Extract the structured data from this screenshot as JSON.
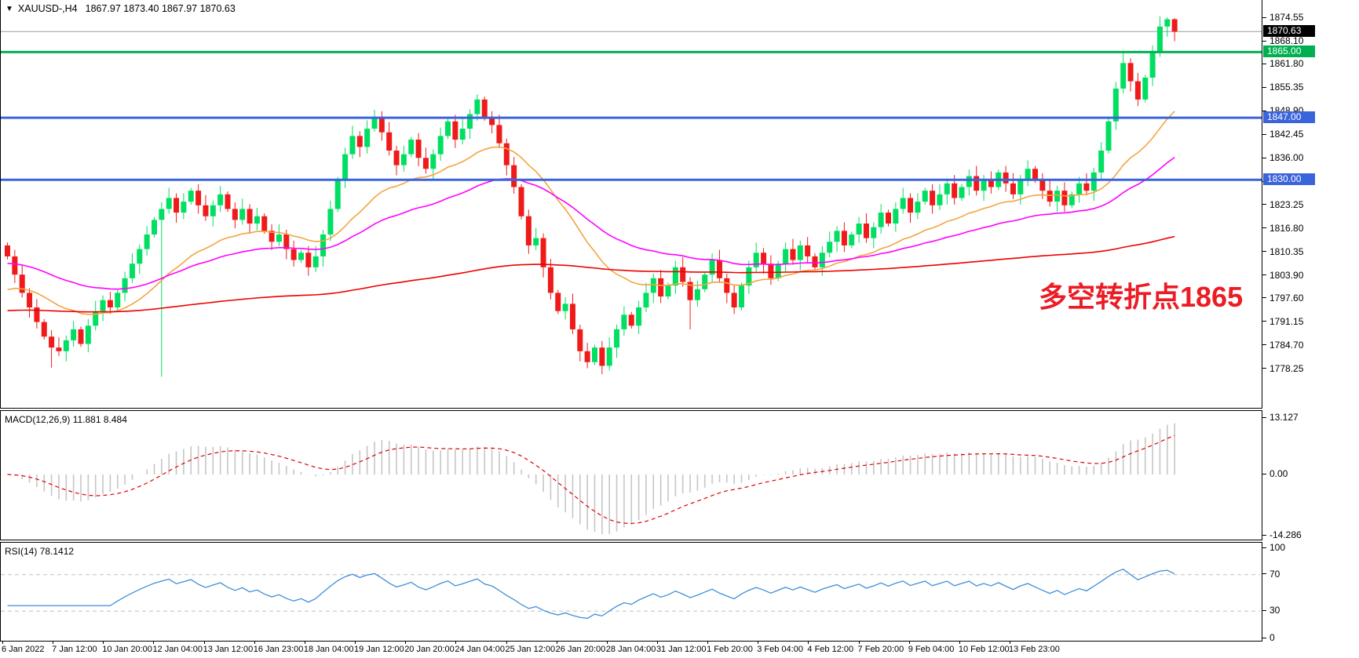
{
  "window": {
    "symbol_header": {
      "collapse_icon": "▼",
      "symbol": "XAUUSD-,H4",
      "ohlc_text": "1867.97 1873.40 1867.97 1870.63"
    }
  },
  "chart_data": {
    "type": "candlestick",
    "title": "XAUUSD-,H4",
    "symbol": "XAUUSD-",
    "timeframe": "H4",
    "current_bar_ohlc": {
      "open": 1867.97,
      "high": 1873.4,
      "low": 1867.97,
      "close": 1870.63
    },
    "price_panel": {
      "ylim": [
        1767,
        1877
      ],
      "axis_ticks": [
        "1874.55",
        "1868.10",
        "1861.80",
        "1855.35",
        "1848.90",
        "1842.45",
        "1836.00",
        "1829.55",
        "1823.25",
        "1816.80",
        "1810.35",
        "1803.90",
        "1797.60",
        "1791.15",
        "1784.70",
        "1778.25"
      ],
      "first_open": 1812,
      "closes": [
        1809,
        1804,
        1799,
        1795,
        1791,
        1787,
        1784,
        1783,
        1786,
        1789,
        1785,
        1790,
        1794,
        1797,
        1795,
        1799,
        1803,
        1807,
        1811,
        1815,
        1819,
        1822,
        1825,
        1821,
        1824,
        1827,
        1823,
        1820,
        1823,
        1826,
        1822,
        1819,
        1822,
        1818,
        1820,
        1816,
        1813,
        1815,
        1811,
        1808,
        1810,
        1806,
        1809,
        1815,
        1822,
        1830,
        1837,
        1842,
        1839,
        1844,
        1847,
        1843,
        1838,
        1834,
        1837,
        1841,
        1836,
        1833,
        1837,
        1842,
        1846,
        1841,
        1844,
        1848,
        1852,
        1847,
        1845,
        1840,
        1834,
        1828,
        1820,
        1812,
        1814,
        1806,
        1799,
        1794,
        1796,
        1789,
        1783,
        1780,
        1784,
        1779,
        1784,
        1789,
        1793,
        1790,
        1795,
        1799,
        1803,
        1798,
        1801,
        1806,
        1802,
        1797,
        1800,
        1804,
        1808,
        1803,
        1799,
        1795,
        1801,
        1806,
        1810,
        1807,
        1803,
        1807,
        1811,
        1808,
        1812,
        1809,
        1806,
        1810,
        1813,
        1816,
        1812,
        1815,
        1818,
        1814,
        1817,
        1821,
        1818,
        1822,
        1825,
        1821,
        1824,
        1827,
        1823,
        1826,
        1829,
        1825,
        1828,
        1831,
        1827,
        1830,
        1828,
        1832,
        1829,
        1826,
        1830,
        1833,
        1830,
        1827,
        1824,
        1827,
        1823,
        1826,
        1829,
        1827,
        1832,
        1838,
        1846,
        1855,
        1862,
        1857,
        1852,
        1858,
        1865,
        1872,
        1874,
        1870.63
      ],
      "low_overrides": {
        "6": 1778.5,
        "21": 1776,
        "79": 1778.3,
        "93": 1789,
        "159": 1868
      },
      "high_overrides": {
        "50": 1849.2,
        "64": 1853.4,
        "158": 1874.55,
        "159": 1874.3
      },
      "colors": {
        "bull": "#00DF62",
        "bear": "#EF1A1A"
      },
      "levels": [
        {
          "price": 1865.0,
          "label": "1865.00",
          "color": "#00B050",
          "width": 3
        },
        {
          "price": 1847.0,
          "label": "1847.00",
          "color": "#3A64DB",
          "width": 3
        },
        {
          "price": 1830.0,
          "label": "1830.00",
          "color": "#3A64DB",
          "width": 3
        }
      ],
      "current_price": {
        "value": 1870.63,
        "label": "1870.63",
        "line_color": "#9a9a9a",
        "badge_color": "#000000"
      },
      "moving_averages": [
        {
          "name": "fast-ma",
          "color": "#F4A440",
          "period": 22,
          "seed": 1799
        },
        {
          "name": "medium-ma",
          "color": "#FF00FF",
          "period": 48,
          "seed": 1807
        },
        {
          "name": "slow-ma",
          "color": "#EE0000",
          "period": 240,
          "seed": 1794
        }
      ],
      "annotation": {
        "text": "多空转折点1865",
        "color": "#EC1C24"
      }
    },
    "macd_panel": {
      "label": "MACD(12,26,9) 11.881 8.484",
      "params": [
        12,
        26,
        9
      ],
      "macd_value": 11.881,
      "signal_value": 8.484,
      "axis_ticks": [
        "13.127",
        "0.00",
        "-14.286"
      ],
      "axis_values": [
        13.127,
        0,
        -14.286
      ],
      "histogram_color": "#C6C6C6",
      "signal_color": "#E00000"
    },
    "rsi_panel": {
      "label": "RSI(14) 78.1412",
      "period": 14,
      "value": 78.1412,
      "axis_ticks": [
        "100",
        "70",
        "30",
        "0"
      ],
      "axis_values": [
        100,
        70,
        30,
        0
      ],
      "overbought": 70,
      "oversold": 30,
      "line_color": "#3E8EDB",
      "level_color": "#C0C0C0"
    },
    "time_axis": {
      "labels": [
        "6 Jan 2022",
        "7 Jan 12:00",
        "10 Jan 20:00",
        "12 Jan 04:00",
        "13 Jan 12:00",
        "16 Jan 23:00",
        "18 Jan 04:00",
        "19 Jan 12:00",
        "20 Jan 20:00",
        "24 Jan 04:00",
        "25 Jan 12:00",
        "26 Jan 20:00",
        "28 Jan 04:00",
        "31 Jan 12:00",
        "1 Feb 20:00",
        "3 Feb 04:00",
        "4 Feb 12:00",
        "7 Feb 20:00",
        "9 Feb 04:00",
        "10 Feb 12:00",
        "13 Feb 23:00"
      ]
    }
  }
}
